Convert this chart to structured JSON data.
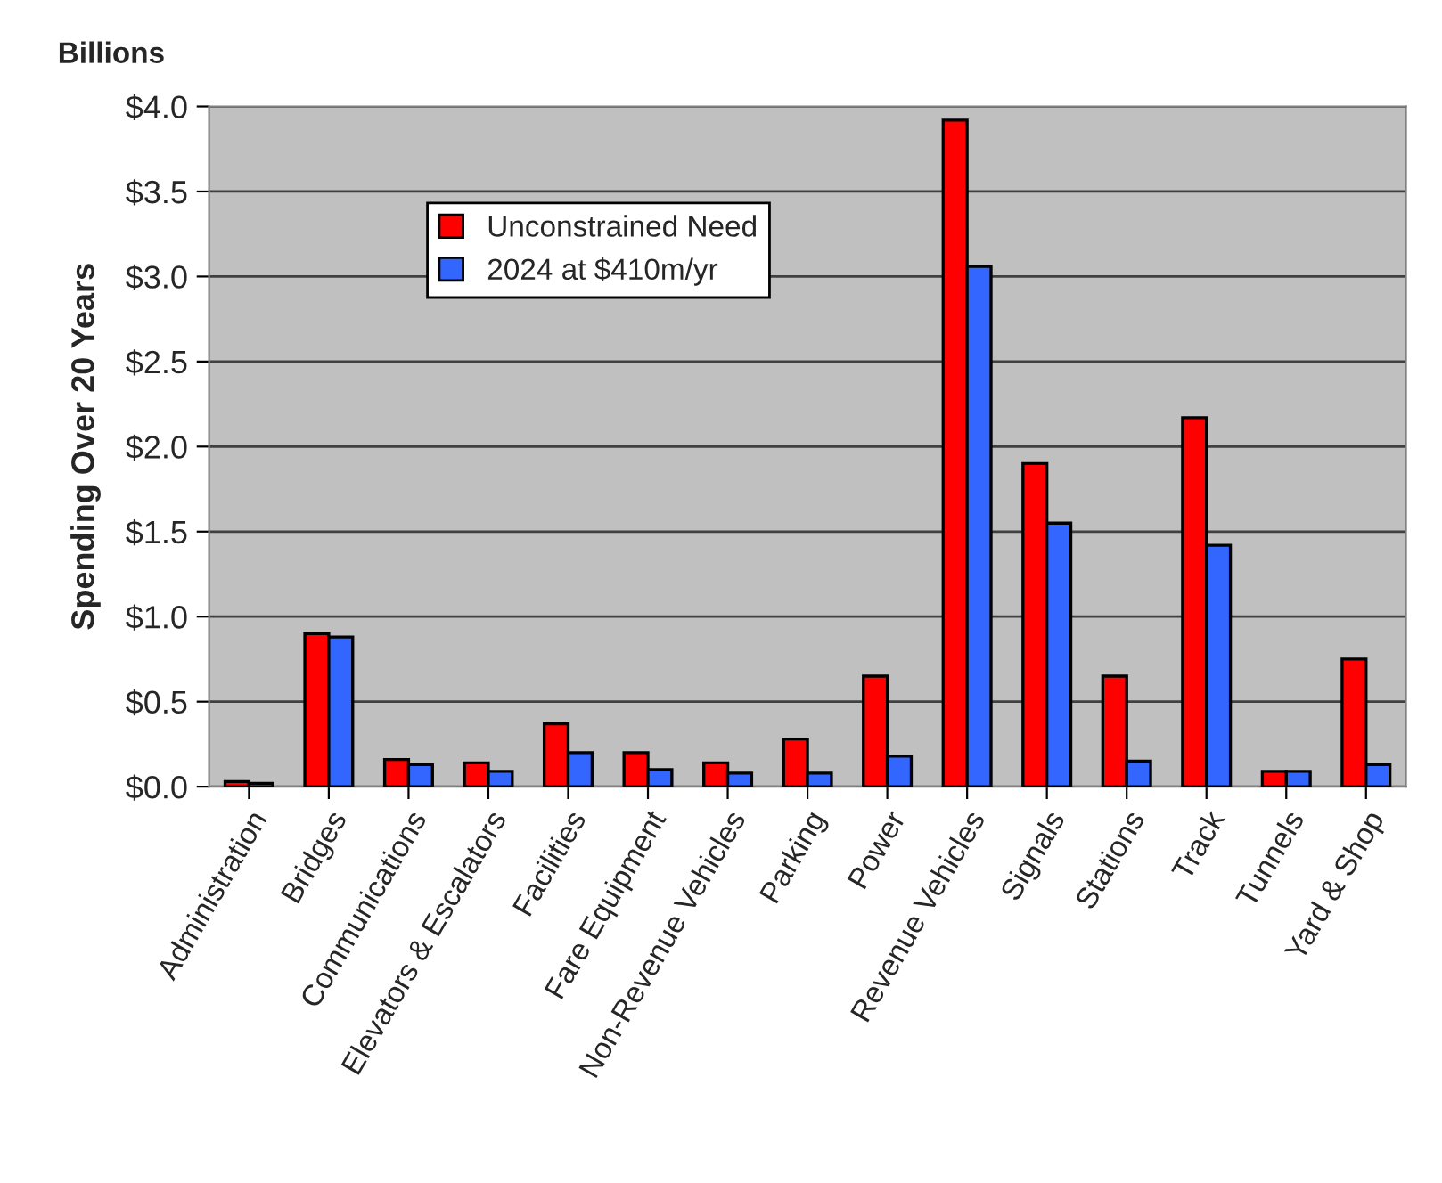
{
  "chart_data": {
    "type": "bar",
    "ylabel": "Spending Over 20 Years",
    "annotations": [
      "Billions"
    ],
    "categories": [
      "Administration",
      "Bridges",
      "Communications",
      "Elevators & Escalators",
      "Facilities",
      "Fare Equipment",
      "Non-Revenue Vehicles",
      "Parking",
      "Power",
      "Revenue Vehicles",
      "Signals",
      "Stations",
      "Track",
      "Tunnels",
      "Yard & Shop"
    ],
    "series": [
      {
        "name": "Unconstrained Need",
        "color": "#ff0000",
        "values": [
          0.03,
          0.9,
          0.16,
          0.14,
          0.37,
          0.2,
          0.14,
          0.28,
          0.65,
          3.92,
          1.9,
          0.65,
          2.17,
          0.09,
          0.75
        ]
      },
      {
        "name": "2024 at $410m/yr",
        "color": "#3366ff",
        "values": [
          0.02,
          0.88,
          0.13,
          0.09,
          0.2,
          0.1,
          0.08,
          0.08,
          0.18,
          3.06,
          1.55,
          0.15,
          1.42,
          0.09,
          0.13
        ]
      }
    ],
    "ylim": [
      0,
      4
    ],
    "yticks": [
      {
        "value": 0,
        "label": "$0.0"
      },
      {
        "value": 0.5,
        "label": "$0.5"
      },
      {
        "value": 1,
        "label": "$1.0"
      },
      {
        "value": 1.5,
        "label": "$1.5"
      },
      {
        "value": 2,
        "label": "$2.0"
      },
      {
        "value": 2.5,
        "label": "$2.5"
      },
      {
        "value": 3,
        "label": "$3.0"
      },
      {
        "value": 3.5,
        "label": "$3.5"
      },
      {
        "value": 4,
        "label": "$4.0"
      }
    ],
    "grid": "y",
    "legend": "top left"
  }
}
